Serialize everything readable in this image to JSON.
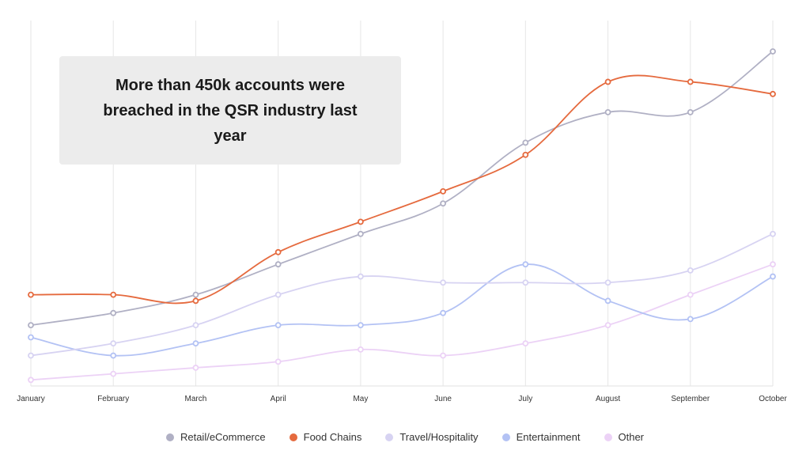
{
  "chart_data": {
    "type": "line",
    "title": "",
    "xlabel": "",
    "ylabel": "",
    "categories": [
      "January",
      "February",
      "March",
      "April",
      "May",
      "June",
      "July",
      "August",
      "September",
      "October"
    ],
    "ylim": [
      0,
      110
    ],
    "grid": "vertical",
    "legend_position": "bottom-center",
    "annotation": "More than 450k accounts were breached in the QSR industry last year",
    "series": [
      {
        "name": "Retail/eCommerce",
        "color": "#b0b0c4",
        "values": [
          20,
          24,
          30,
          40,
          50,
          60,
          80,
          90,
          90,
          110
        ]
      },
      {
        "name": "Food Chains",
        "color": "#e56a3e",
        "values": [
          30,
          30,
          28,
          44,
          54,
          64,
          76,
          100,
          100,
          96
        ]
      },
      {
        "name": "Travel/Hospitality",
        "color": "#d7d3f2",
        "values": [
          10,
          14,
          20,
          30,
          36,
          34,
          34,
          34,
          38,
          50
        ]
      },
      {
        "name": "Entertainment",
        "color": "#b3c2f4",
        "values": [
          16,
          10,
          14,
          20,
          20,
          24,
          40,
          28,
          22,
          36
        ]
      },
      {
        "name": "Other",
        "color": "#ecd2f6",
        "values": [
          2,
          4,
          6,
          8,
          12,
          10,
          14,
          20,
          30,
          40
        ]
      }
    ]
  }
}
